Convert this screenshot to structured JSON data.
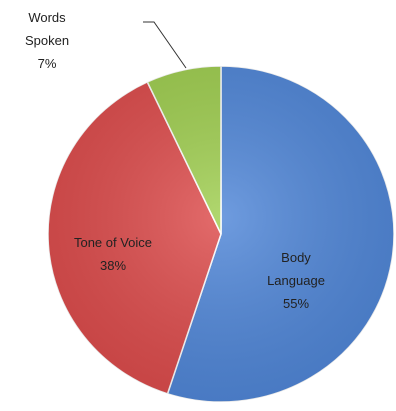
{
  "chart_data": {
    "type": "pie",
    "title": "",
    "slices": [
      {
        "category": "Body Language",
        "lines": [
          "Body",
          "Language"
        ],
        "value": 55,
        "value_label": "55%",
        "color": "#4f86d8"
      },
      {
        "category": "Tone of Voice",
        "lines": [
          "Tone of Voice"
        ],
        "value": 38,
        "value_label": "38%",
        "color": "#dd4b4b"
      },
      {
        "category": "Words Spoken",
        "lines": [
          "Words",
          "Spoken"
        ],
        "value": 7,
        "value_label": "7%",
        "color": "#9fce4f"
      }
    ],
    "legend": "none",
    "data_labels": "category and percentage"
  }
}
